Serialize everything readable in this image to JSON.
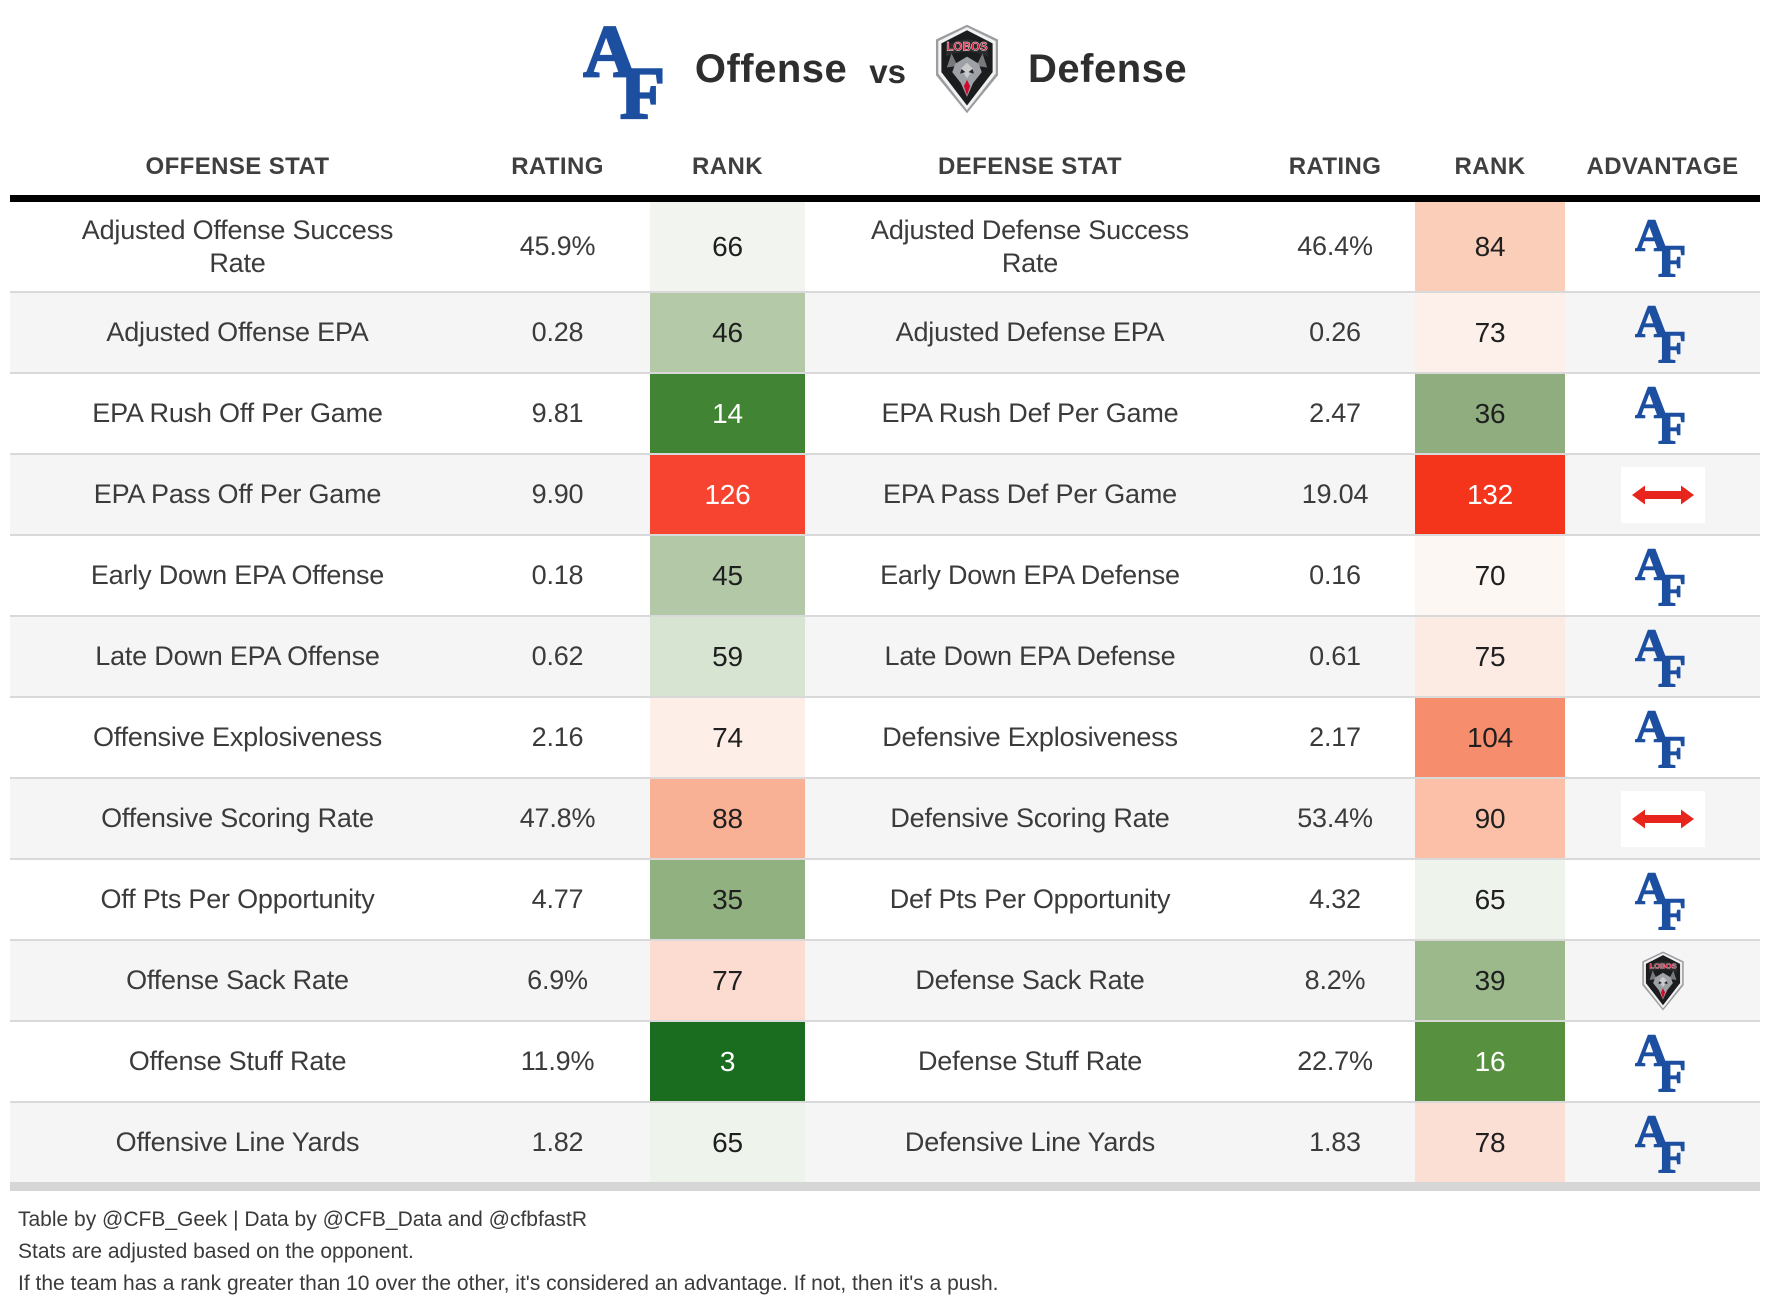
{
  "title": {
    "left_team": "Air Force Falcons",
    "left_label": "Offense",
    "vs": "vs",
    "right_team": "New Mexico Lobos",
    "right_label": "Defense",
    "lobos_wordmark": "LOBOS"
  },
  "header": {
    "off_stat": "OFFENSE STAT",
    "off_rating": "RATING",
    "off_rank": "RANK",
    "def_stat": "DEFENSE STAT",
    "def_rating": "RATING",
    "def_rank": "RANK",
    "advantage": "ADVANTAGE"
  },
  "colors": {
    "af_blue": "#1d4fa1",
    "lobos_red": "#cf0a2c",
    "push_arrow_red": "#e8251d",
    "header_rule": "#000000",
    "row_alt": "#f5f5f5",
    "divider": "#d9d9d9",
    "bottom_bar": "#d6d6d6",
    "body_text": "#3b3b3b"
  },
  "rows": [
    {
      "off_stat": "Adjusted Offense Success Rate",
      "off_rating": "45.9%",
      "off_rank": "66",
      "off_rank_bg": "#f2f5ef",
      "off_rank_fg": "#1f1f1f",
      "def_stat": "Adjusted Defense Success Rate",
      "def_rating": "46.4%",
      "def_rank": "84",
      "def_rank_bg": "#fbceb9",
      "def_rank_fg": "#1f1f1f",
      "advantage": "AF"
    },
    {
      "off_stat": "Adjusted Offense EPA",
      "off_rating": "0.28",
      "off_rank": "46",
      "off_rank_bg": "#b3c9a7",
      "off_rank_fg": "#1f1f1f",
      "def_stat": "Adjusted Defense EPA",
      "def_rating": "0.26",
      "def_rank": "73",
      "def_rank_bg": "#fdefea",
      "def_rank_fg": "#1f1f1f",
      "advantage": "AF"
    },
    {
      "off_stat": "EPA Rush Off Per Game",
      "off_rating": "9.81",
      "off_rank": "14",
      "off_rank_bg": "#418434",
      "off_rank_fg": "#ffffff",
      "def_stat": "EPA Rush Def Per Game",
      "def_rating": "2.47",
      "def_rank": "36",
      "def_rank_bg": "#8fad7e",
      "def_rank_fg": "#1f1f1f",
      "advantage": "AF"
    },
    {
      "off_stat": "EPA Pass Off Per Game",
      "off_rating": "9.90",
      "off_rank": "126",
      "off_rank_bg": "#f64430",
      "off_rank_fg": "#ffffff",
      "def_stat": "EPA Pass Def Per Game",
      "def_rating": "19.04",
      "def_rank": "132",
      "def_rank_bg": "#f5341c",
      "def_rank_fg": "#ffffff",
      "advantage": "PUSH"
    },
    {
      "off_stat": "Early Down EPA Offense",
      "off_rating": "0.18",
      "off_rank": "45",
      "off_rank_bg": "#b2c8a6",
      "off_rank_fg": "#1f1f1f",
      "def_stat": "Early Down EPA Defense",
      "def_rating": "0.16",
      "def_rank": "70",
      "def_rank_bg": "#fdf7f4",
      "def_rank_fg": "#1f1f1f",
      "advantage": "AF"
    },
    {
      "off_stat": "Late Down EPA Offense",
      "off_rating": "0.62",
      "off_rank": "59",
      "off_rank_bg": "#d8e4d2",
      "off_rank_fg": "#1f1f1f",
      "def_stat": "Late Down EPA Defense",
      "def_rating": "0.61",
      "def_rank": "75",
      "def_rank_bg": "#fcebe3",
      "def_rank_fg": "#1f1f1f",
      "advantage": "AF"
    },
    {
      "off_stat": "Offensive Explosiveness",
      "off_rating": "2.16",
      "off_rank": "74",
      "off_rank_bg": "#fdeee8",
      "off_rank_fg": "#1f1f1f",
      "def_stat": "Defensive Explosiveness",
      "def_rating": "2.17",
      "def_rank": "104",
      "def_rank_bg": "#f68d6d",
      "def_rank_fg": "#1f1f1f",
      "advantage": "AF"
    },
    {
      "off_stat": "Offensive Scoring Rate",
      "off_rating": "47.8%",
      "off_rank": "88",
      "off_rank_bg": "#f9b196",
      "off_rank_fg": "#1f1f1f",
      "def_stat": "Defensive Scoring Rate",
      "def_rating": "53.4%",
      "def_rank": "90",
      "def_rank_bg": "#fcc0a8",
      "def_rank_fg": "#1f1f1f",
      "advantage": "PUSH"
    },
    {
      "off_stat": "Off Pts Per Opportunity",
      "off_rating": "4.77",
      "off_rank": "35",
      "off_rank_bg": "#92b181",
      "off_rank_fg": "#1f1f1f",
      "def_stat": "Def Pts Per Opportunity",
      "def_rating": "4.32",
      "def_rank": "65",
      "def_rank_bg": "#eef4eb",
      "def_rank_fg": "#1f1f1f",
      "advantage": "AF"
    },
    {
      "off_stat": "Offense Sack Rate",
      "off_rating": "6.9%",
      "off_rank": "77",
      "off_rank_bg": "#fcdcd0",
      "off_rank_fg": "#1f1f1f",
      "def_stat": "Defense Sack Rate",
      "def_rating": "8.2%",
      "def_rank": "39",
      "def_rank_bg": "#9cb98b",
      "def_rank_fg": "#1f1f1f",
      "advantage": "UNM"
    },
    {
      "off_stat": "Offense Stuff Rate",
      "off_rating": "11.9%",
      "off_rank": "3",
      "off_rank_bg": "#1a6c1e",
      "off_rank_fg": "#ffffff",
      "def_stat": "Defense Stuff Rate",
      "def_rating": "22.7%",
      "def_rank": "16",
      "def_rank_bg": "#579140",
      "def_rank_fg": "#ffffff",
      "advantage": "AF"
    },
    {
      "off_stat": "Offensive Line Yards",
      "off_rating": "1.82",
      "off_rank": "65",
      "off_rank_bg": "#eef4eb",
      "off_rank_fg": "#1f1f1f",
      "def_stat": "Defensive Line Yards",
      "def_rating": "1.83",
      "def_rank": "78",
      "def_rank_bg": "#fcdfd4",
      "def_rank_fg": "#1f1f1f",
      "advantage": "AF"
    }
  ],
  "footnotes": [
    "Table by @CFB_Geek | Data by @CFB_Data and @cfbfastR",
    "Stats are adjusted based on the opponent.",
    "If the team has a rank greater than 10 over the other, it's considered an advantage. If not, then it's a push."
  ],
  "chart_data": {
    "type": "table",
    "title": "Air Force Offense vs New Mexico Defense",
    "columns": [
      "Offense Stat",
      "Rating",
      "Rank",
      "Defense Stat",
      "Rating",
      "Rank",
      "Advantage"
    ],
    "rows": [
      [
        "Adjusted Offense Success Rate",
        "45.9%",
        66,
        "Adjusted Defense Success Rate",
        "46.4%",
        84,
        "Air Force"
      ],
      [
        "Adjusted Offense EPA",
        0.28,
        46,
        "Adjusted Defense EPA",
        0.26,
        73,
        "Air Force"
      ],
      [
        "EPA Rush Off Per Game",
        9.81,
        14,
        "EPA Rush Def Per Game",
        2.47,
        36,
        "Air Force"
      ],
      [
        "EPA Pass Off Per Game",
        9.9,
        126,
        "EPA Pass Def Per Game",
        19.04,
        132,
        "Push"
      ],
      [
        "Early Down EPA Offense",
        0.18,
        45,
        "Early Down EPA Defense",
        0.16,
        70,
        "Air Force"
      ],
      [
        "Late Down EPA Offense",
        0.62,
        59,
        "Late Down EPA Defense",
        0.61,
        75,
        "Air Force"
      ],
      [
        "Offensive Explosiveness",
        2.16,
        74,
        "Defensive Explosiveness",
        2.17,
        104,
        "Air Force"
      ],
      [
        "Offensive Scoring Rate",
        "47.8%",
        88,
        "Defensive Scoring Rate",
        "53.4%",
        90,
        "Push"
      ],
      [
        "Off Pts Per Opportunity",
        4.77,
        35,
        "Def Pts Per Opportunity",
        4.32,
        65,
        "Air Force"
      ],
      [
        "Offense Sack Rate",
        "6.9%",
        77,
        "Defense Sack Rate",
        "8.2%",
        39,
        "New Mexico"
      ],
      [
        "Offense Stuff Rate",
        "11.9%",
        3,
        "Defense Stuff Rate",
        "22.7%",
        16,
        "Air Force"
      ],
      [
        "Offensive Line Yards",
        1.82,
        65,
        "Defensive Line Yards",
        1.83,
        78,
        "Air Force"
      ]
    ],
    "rank_color_scale": "green = good rank (low number), red = bad rank (high number)"
  }
}
